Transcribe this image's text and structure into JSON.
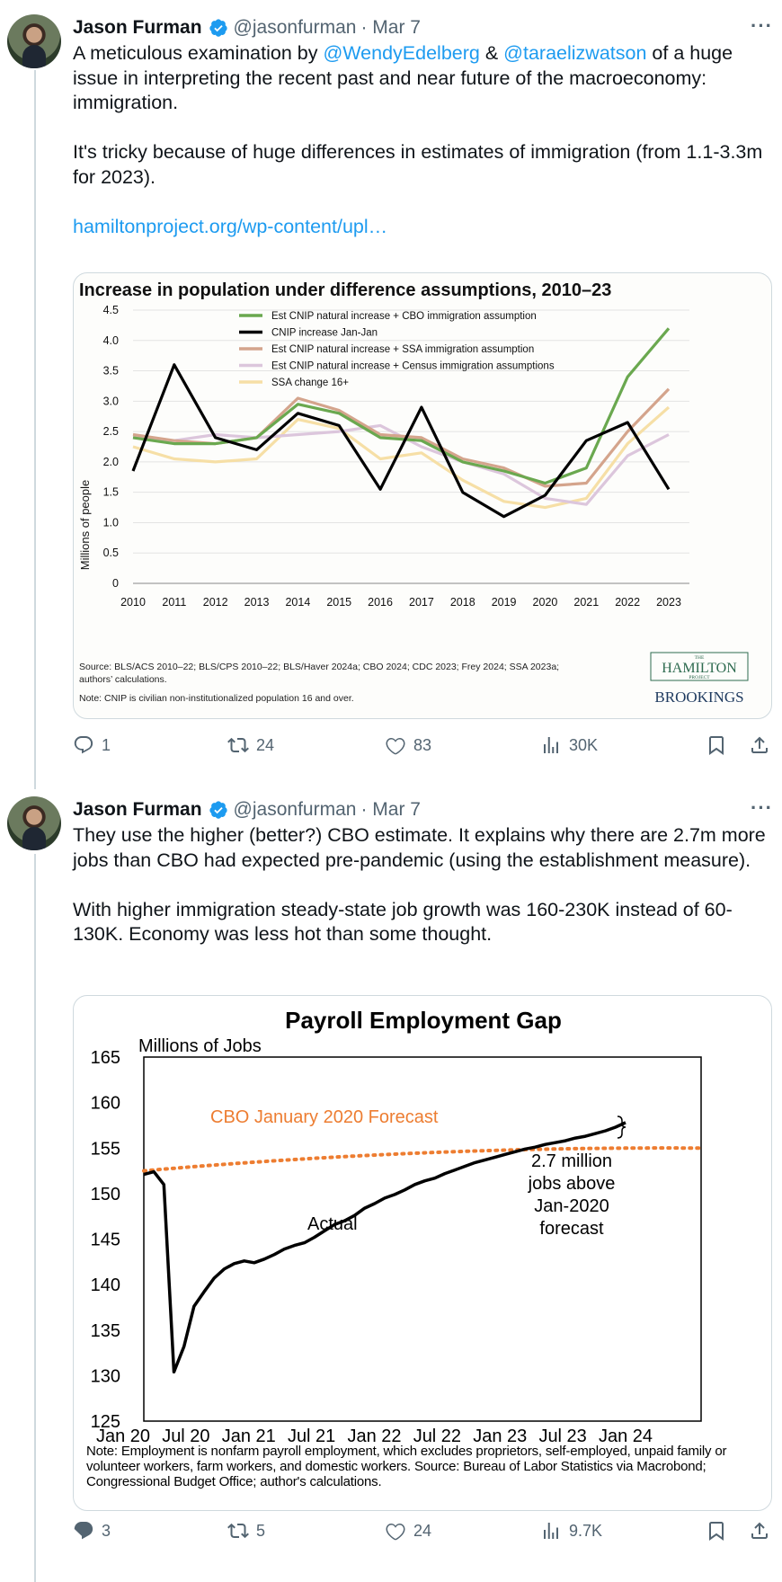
{
  "tweets": [
    {
      "name": "Jason Furman",
      "handle": "@jasonfurman",
      "date": "· Mar 7",
      "more": "···",
      "text": {
        "p1_a": "A meticulous examination by ",
        "mention1": "@WendyEdelberg",
        "p1_b": " & ",
        "mention2": "@taraelizwatson",
        "p1_c": " of a huge issue in interpreting the recent past and near future of the macroeconomy: immigration.",
        "p2": "It's tricky because of huge differences in estimates of immigration (from 1.1-3.3m for 2023).",
        "link": "hamiltonproject.org/wp-content/upl…"
      },
      "stats": {
        "replies": "1",
        "retweets": "24",
        "likes": "83",
        "views": "30K"
      }
    },
    {
      "name": "Jason Furman",
      "handle": "@jasonfurman",
      "date": "· Mar 7",
      "more": "···",
      "text": {
        "p1": "They use the higher (better?) CBO estimate. It explains why there are 2.7m more jobs than CBO had expected pre-pandemic (using the establishment measure).",
        "p2": "With higher immigration steady-state job growth was 160-230K instead of 60-130K. Economy was less hot than some thought."
      },
      "stats": {
        "replies": "3",
        "retweets": "5",
        "likes": "24",
        "views": "9.7K"
      }
    }
  ],
  "colors": {
    "link": "#1d9bf0",
    "verified": "#1d9bf0",
    "muted": "#536471"
  },
  "chart_data": [
    {
      "type": "line",
      "title": "Increase in population under difference assumptions, 2010–23",
      "ylabel": "Millions of people",
      "ylim": [
        0,
        4.5
      ],
      "yticks": [
        "4.5",
        "4.0",
        "3.5",
        "3.0",
        "2.5",
        "2.0",
        "1.5",
        "1.0",
        "0.5",
        "0"
      ],
      "x": [
        "2010",
        "2011",
        "2012",
        "2013",
        "2014",
        "2015",
        "2016",
        "2017",
        "2018",
        "2019",
        "2020",
        "2021",
        "2022",
        "2023"
      ],
      "series": [
        {
          "name": "Est CNIP natural increase + CBO immigration assumption",
          "color": "#6aa84f",
          "values": [
            2.4,
            2.3,
            2.3,
            2.4,
            2.95,
            2.8,
            2.4,
            2.35,
            2.0,
            1.85,
            1.65,
            1.9,
            3.4,
            4.2
          ]
        },
        {
          "name": "CNIP increase Jan-Jan",
          "color": "#000000",
          "values": [
            1.85,
            3.6,
            2.4,
            2.2,
            2.8,
            2.6,
            1.55,
            2.9,
            1.5,
            1.1,
            1.45,
            2.35,
            2.65,
            1.55
          ]
        },
        {
          "name": "Est CNIP natural increase + SSA immigration assumption",
          "color": "#d4a48c",
          "values": [
            2.45,
            2.35,
            2.3,
            2.4,
            3.05,
            2.85,
            2.45,
            2.4,
            2.05,
            1.9,
            1.6,
            1.65,
            2.5,
            3.2
          ]
        },
        {
          "name": "Est CNIP natural increase + Census immigration assumptions",
          "color": "#dcc6dc",
          "values": [
            2.4,
            2.35,
            2.45,
            2.4,
            2.45,
            2.5,
            2.6,
            2.25,
            2.0,
            1.8,
            1.4,
            1.3,
            2.1,
            2.45
          ]
        },
        {
          "name": "SSA change 16+",
          "color": "#f6dfa6",
          "values": [
            2.25,
            2.05,
            2.0,
            2.05,
            2.7,
            2.55,
            2.05,
            2.15,
            1.7,
            1.35,
            1.25,
            1.4,
            2.3,
            2.9
          ]
        }
      ],
      "source": "Source: BLS/ACS 2010–22; BLS/CPS 2010–22; BLS/Haver 2024a; CBO 2024; CDC 2023; Frey 2024; SSA 2023a; authors’ calculations.",
      "note": "Note: CNIP is civilian non-institutionalized population 16 and over.",
      "logo_the": "THE",
      "logo_hamilton": "HAMILTON",
      "logo_project": "PROJECT",
      "logo_brookings": "BROOKINGS"
    },
    {
      "type": "line",
      "title": "Payroll Employment Gap",
      "ylabel": "Millions  of Jobs",
      "ylim": [
        125,
        165
      ],
      "yticks": [
        "165",
        "160",
        "155",
        "150",
        "145",
        "140",
        "135",
        "130",
        "125"
      ],
      "xticks": [
        "Jan 20",
        "Jul 20",
        "Jan 21",
        "Jul 21",
        "Jan 22",
        "Jul 22",
        "Jan 23",
        "Jul 23",
        "Jan 24"
      ],
      "series": [
        {
          "name": "Actual",
          "color": "#000000",
          "values": [
            152.1,
            152.4,
            151.0,
            130.4,
            133.2,
            137.6,
            139.2,
            140.7,
            141.7,
            142.3,
            142.6,
            142.4,
            142.8,
            143.3,
            143.9,
            144.3,
            144.6,
            145.2,
            145.9,
            146.6,
            147.0,
            147.6,
            148.4,
            148.9,
            149.5,
            149.9,
            150.4,
            151.0,
            151.4,
            151.7,
            152.2,
            152.6,
            153.0,
            153.4,
            153.7,
            154.0,
            154.3,
            154.6,
            154.9,
            155.1,
            155.4,
            155.6,
            155.8,
            156.1,
            156.3,
            156.6,
            156.9,
            157.3,
            157.8
          ]
        },
        {
          "name": "CBO January 2020 Forecast",
          "color": "#ed7d31",
          "dashed": true,
          "start": 152.5,
          "end": 155.0
        }
      ],
      "annotation_actual": "Actual",
      "annotation_forecast": "CBO January 2020 Forecast",
      "annotation_gap": [
        "2.7 million",
        "jobs above",
        "Jan-2020",
        "forecast"
      ],
      "note": "Note: Employment is nonfarm payroll employment, which excludes proprietors, self-employed, unpaid family or volunteer workers, farm workers, and domestic workers. Source: Bureau of Labor Statistics via Macrobond; Congressional Budget Office; author's calculations."
    }
  ]
}
